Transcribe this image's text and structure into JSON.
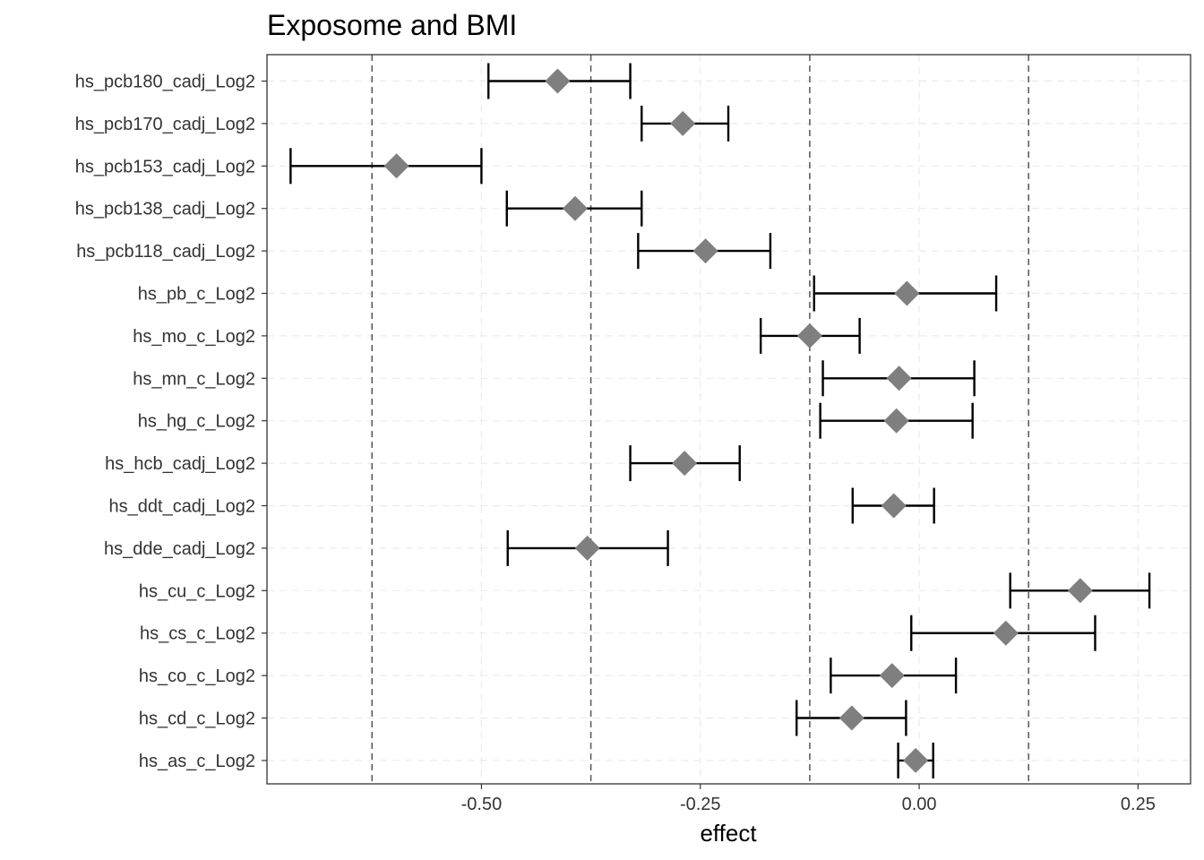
{
  "chart_data": {
    "type": "scatter",
    "title": "Exposome and BMI",
    "xlabel": "effect",
    "ylabel": "",
    "xlim": [
      -0.745,
      0.31
    ],
    "x_ticks": [
      -0.5,
      -0.25,
      0.0,
      0.25
    ],
    "x_tick_labels": [
      "-0.50",
      "-0.25",
      "0.00",
      "0.25"
    ],
    "reference_lines": [
      -0.625,
      -0.375,
      -0.125,
      0.125
    ],
    "grid": true,
    "marker": "diamond",
    "marker_color": "#7f7f7f",
    "errorbar_color": "#000000",
    "reference_line_color": "#555555",
    "categories": [
      "hs_pcb180_cadj_Log2",
      "hs_pcb170_cadj_Log2",
      "hs_pcb153_cadj_Log2",
      "hs_pcb138_cadj_Log2",
      "hs_pcb118_cadj_Log2",
      "hs_pb_c_Log2",
      "hs_mo_c_Log2",
      "hs_mn_c_Log2",
      "hs_hg_c_Log2",
      "hs_hcb_cadj_Log2",
      "hs_ddt_cadj_Log2",
      "hs_dde_cadj_Log2",
      "hs_cu_c_Log2",
      "hs_cs_c_Log2",
      "hs_co_c_Log2",
      "hs_cd_c_Log2",
      "hs_as_c_Log2"
    ],
    "estimate": [
      -0.413,
      -0.27,
      -0.597,
      -0.393,
      -0.244,
      -0.014,
      -0.125,
      -0.023,
      -0.026,
      -0.268,
      -0.029,
      -0.379,
      0.184,
      0.099,
      -0.031,
      -0.077,
      -0.004
    ],
    "lower": [
      -0.492,
      -0.317,
      -0.718,
      -0.471,
      -0.321,
      -0.12,
      -0.181,
      -0.11,
      -0.113,
      -0.33,
      -0.076,
      -0.47,
      0.104,
      -0.009,
      -0.101,
      -0.14,
      -0.024
    ],
    "upper": [
      -0.33,
      -0.218,
      -0.5,
      -0.317,
      -0.17,
      0.088,
      -0.068,
      0.063,
      0.061,
      -0.205,
      0.017,
      -0.287,
      0.263,
      0.201,
      0.042,
      -0.015,
      0.016
    ]
  }
}
